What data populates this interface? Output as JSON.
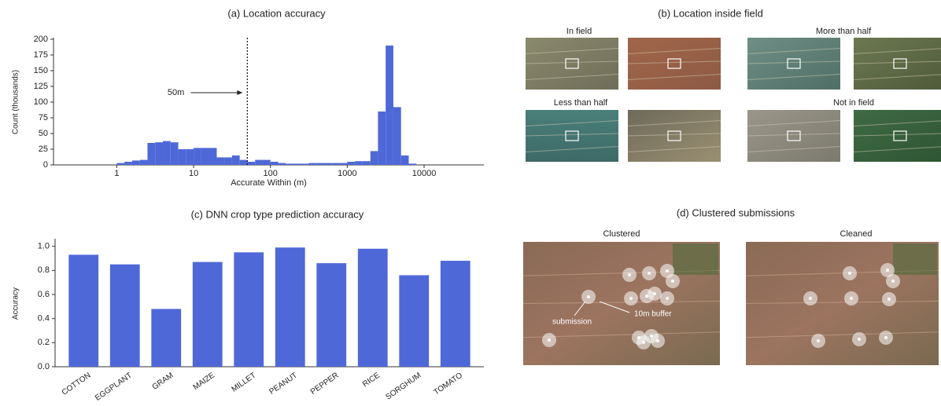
{
  "chart_data": [
    {
      "type": "histogram",
      "title": "(a) Location accuracy",
      "xlabel": "Accurate Within (m)",
      "ylabel": "Count (thousands)",
      "bins": [
        1,
        1.26,
        1.58,
        2,
        2.51,
        3.16,
        3.98,
        5.01,
        6.31,
        7.94,
        10,
        12.6,
        15.8,
        20,
        25.1,
        31.6,
        39.8,
        50.1,
        63.1,
        79.4,
        100,
        126,
        158,
        200,
        251,
        316,
        398,
        501,
        631,
        794,
        1000,
        1260,
        1580,
        2000,
        2510,
        3160,
        3980,
        5010,
        6310,
        7940
      ],
      "values": [
        3,
        5,
        7,
        8,
        35,
        36,
        38,
        36,
        25,
        25,
        27,
        27,
        27,
        12,
        12,
        15,
        8,
        5,
        8,
        8,
        5,
        3,
        2,
        2,
        2,
        3,
        3,
        3,
        3,
        3,
        5,
        6,
        6,
        22,
        85,
        190,
        92,
        15,
        2
      ],
      "color": "#4f68d8",
      "xscale": "log",
      "xlim": [
        0.15,
        60000
      ],
      "xticks": [
        1,
        10,
        100,
        1000,
        10000
      ],
      "ylim": [
        0,
        200
      ],
      "yticks": [
        0,
        25,
        50,
        75,
        100,
        125,
        150,
        175,
        200
      ],
      "vline": 50,
      "vline_label": "50m"
    },
    {
      "type": "bar",
      "title": "(c) DNN crop type prediction accuracy",
      "ylabel": "Accuracy",
      "categories": [
        "COTTON",
        "EGGPLANT",
        "GRAM",
        "MAIZE",
        "MILLET",
        "PEANUT",
        "PEPPER",
        "RICE",
        "SORGHUM",
        "TOMATO"
      ],
      "values": [
        0.93,
        0.85,
        0.48,
        0.87,
        0.95,
        0.99,
        0.86,
        0.98,
        0.76,
        0.88
      ],
      "color": "#4f68d8",
      "ylim": [
        0,
        1.05
      ],
      "yticks": [
        {
          "value": 0,
          "label": "0.0"
        },
        {
          "value": 0.2,
          "label": "0.2"
        },
        {
          "value": 0.4,
          "label": "0.4"
        },
        {
          "value": 0.6,
          "label": "0.6"
        },
        {
          "value": 0.8,
          "label": "0.8"
        },
        {
          "value": 1,
          "label": "1.0"
        }
      ]
    }
  ],
  "image_panels": [
    {
      "title": "(b) Location inside field",
      "labels": [
        "In field",
        "More than half",
        "Less than half",
        "Not in field"
      ]
    },
    {
      "title": "(d) Clustered submissions",
      "labels": [
        "Clustered",
        "Cleaned"
      ],
      "annotations": [
        "submission",
        "10m buffer"
      ]
    }
  ]
}
